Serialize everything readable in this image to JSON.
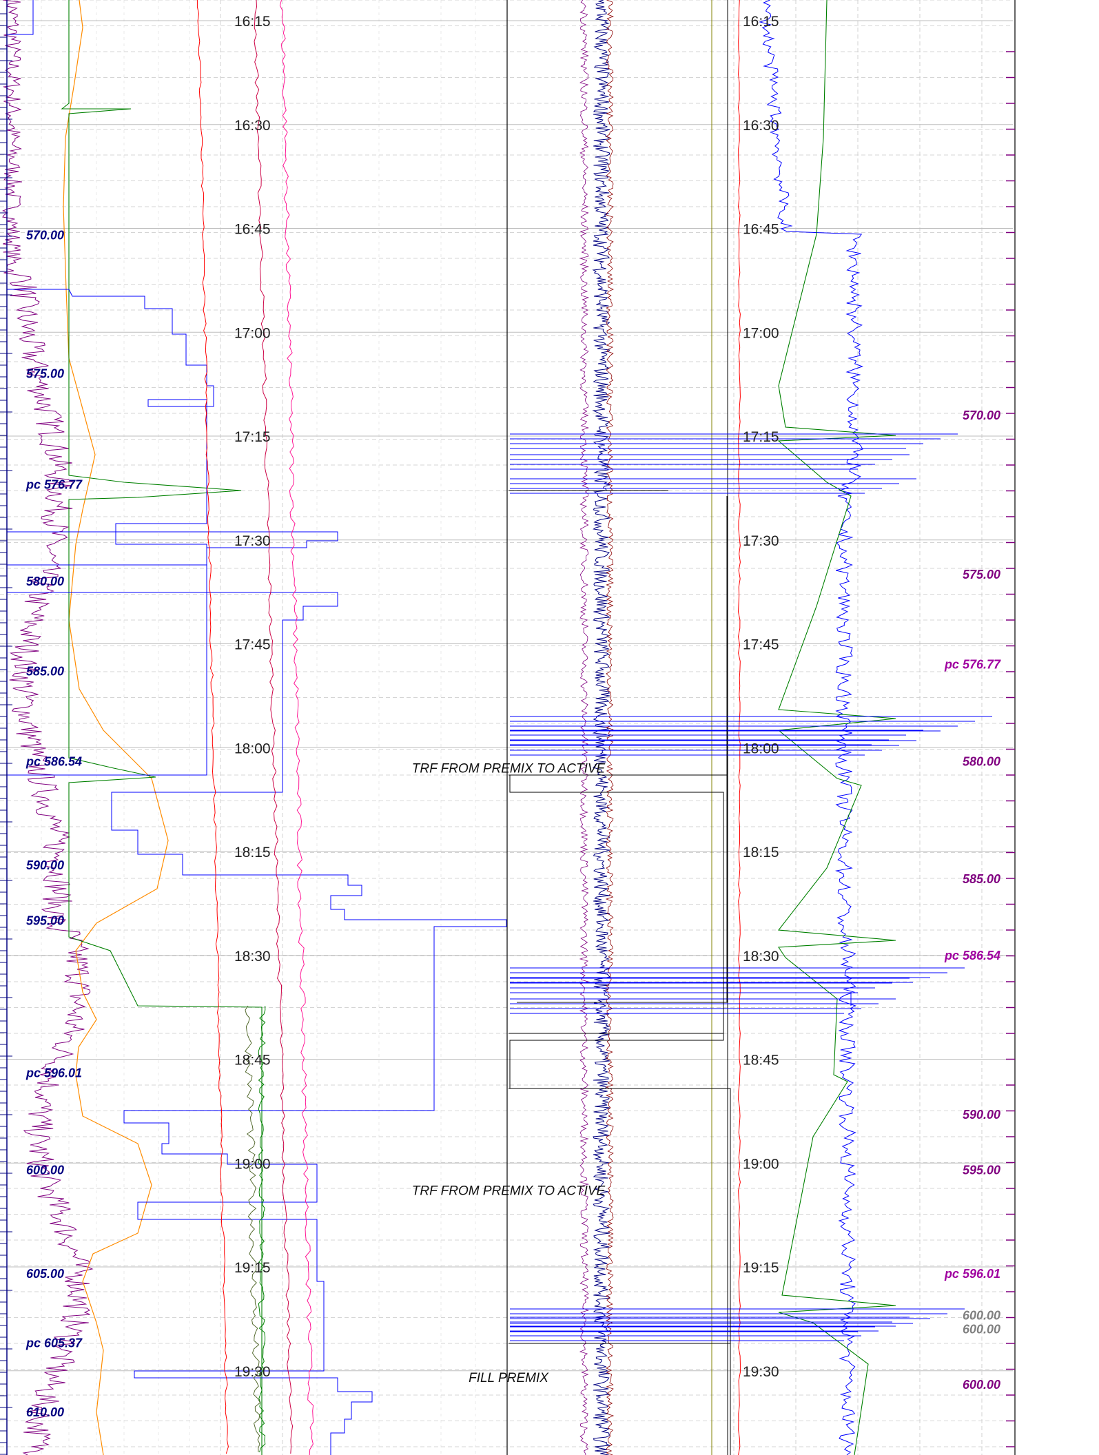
{
  "chart_data": {
    "type": "line",
    "title": "",
    "xlabel": "",
    "ylabel": "",
    "time_range": [
      "16:05",
      "19:43"
    ],
    "grid": true,
    "time_ticks": [
      "16:15",
      "16:30",
      "16:45",
      "17:00",
      "17:15",
      "17:30",
      "17:45",
      "18:00",
      "18:15",
      "18:30",
      "18:45",
      "19:00",
      "19:15",
      "19:30"
    ],
    "left_depth_labels": [
      {
        "text": "570.00",
        "time": "16:46"
      },
      {
        "text": "575.00",
        "time": "17:06"
      },
      {
        "text": "pc  576.77",
        "time": "17:22"
      },
      {
        "text": "580.00",
        "time": "17:36"
      },
      {
        "text": "585.00",
        "time": "17:49"
      },
      {
        "text": "pc  586.54",
        "time": "18:02"
      },
      {
        "text": "590.00",
        "time": "18:17"
      },
      {
        "text": "595.00",
        "time": "18:25"
      },
      {
        "text": "pc  596.01",
        "time": "18:47"
      },
      {
        "text": "600.00",
        "time": "19:01"
      },
      {
        "text": "605.00",
        "time": "19:16"
      },
      {
        "text": "pc  605.37",
        "time": "19:26"
      },
      {
        "text": "610.00",
        "time": "19:36"
      }
    ],
    "right_depth_labels": [
      {
        "text": "570.00",
        "time": "17:12",
        "color": "#800080"
      },
      {
        "text": "575.00",
        "time": "17:35",
        "color": "#800080"
      },
      {
        "text": "pc  576.77",
        "time": "17:48",
        "color": "#a000a0"
      },
      {
        "text": "580.00",
        "time": "18:02",
        "color": "#800080"
      },
      {
        "text": "585.00",
        "time": "18:19",
        "color": "#800080"
      },
      {
        "text": "pc  586.54",
        "time": "18:30",
        "color": "#a000a0"
      },
      {
        "text": "590.00",
        "time": "18:53",
        "color": "#800080"
      },
      {
        "text": "595.00",
        "time": "19:01",
        "color": "#800080"
      },
      {
        "text": "pc  596.01",
        "time": "19:16",
        "color": "#a000a0"
      },
      {
        "text": "600.00",
        "time": "19:22",
        "color": "#808080"
      },
      {
        "text": "600.00",
        "time": "19:24",
        "color": "#808080"
      },
      {
        "text": "600.00",
        "time": "19:32",
        "color": "#800080"
      }
    ],
    "annotations": [
      {
        "text": "TRF FROM PREMIX TO ACTIVE",
        "time": "18:03"
      },
      {
        "text": "TRF FROM PREMIX TO ACTIVE",
        "time": "19:04"
      },
      {
        "text": "FILL PREMIX",
        "time": "19:31"
      }
    ],
    "colors": {
      "purple": "#800080",
      "orange": "#ff8c00",
      "green": "#008000",
      "blue": "#0000ff",
      "navy": "#000080",
      "red": "#ff0000",
      "crimson": "#cc0044",
      "pink": "#ff1493",
      "maroon": "#8b0000",
      "black": "#000000",
      "olive": "#808000",
      "grid": "#c8c8c8"
    }
  }
}
